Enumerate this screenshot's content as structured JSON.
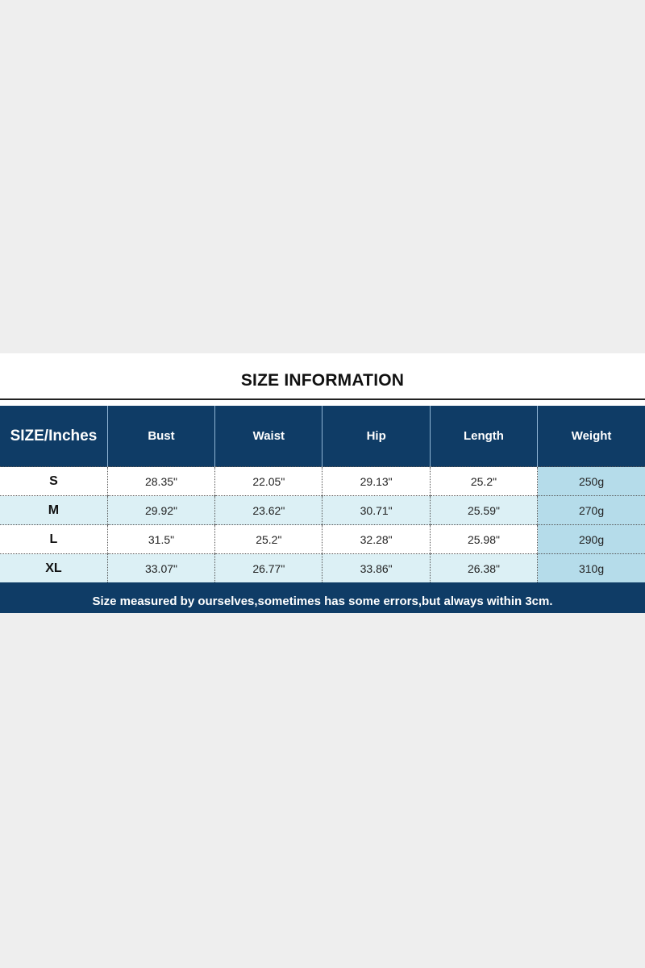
{
  "title": "SIZE INFORMATION",
  "columns": [
    "SIZE/Inches",
    "Bust",
    "Waist",
    "Hip",
    "Length",
    "Weight"
  ],
  "rows": [
    [
      "S",
      "28.35\"",
      "22.05\"",
      "29.13\"",
      "25.2\"",
      "250g"
    ],
    [
      "M",
      "29.92\"",
      "23.62\"",
      "30.71\"",
      "25.59\"",
      "270g"
    ],
    [
      "L",
      "31.5\"",
      "25.2\"",
      "32.28\"",
      "25.98\"",
      "290g"
    ],
    [
      "XL",
      "33.07\"",
      "26.77\"",
      "33.86\"",
      "26.38\"",
      "310g"
    ]
  ],
  "footer": "Size measured by ourselves,sometimes has some errors,but always within 3cm.",
  "colors": {
    "header": "#0f3c66",
    "alt_row": "#dcf0f5",
    "weight_column": "#b5dcea",
    "background": "#eeeeee"
  }
}
